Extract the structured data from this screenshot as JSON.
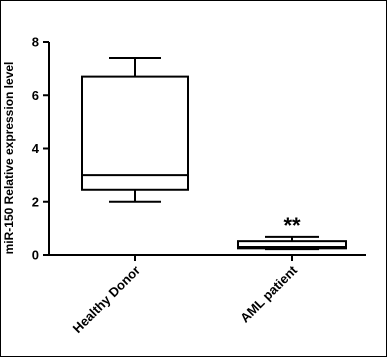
{
  "chart_data": {
    "type": "box",
    "ylabel": "miR-150 Relative expression level",
    "ylim": [
      0,
      8
    ],
    "yticks": [
      0,
      2,
      4,
      6,
      8
    ],
    "categories": [
      "Healthy Donor",
      "AML patient"
    ],
    "boxes": [
      {
        "name": "Healthy Donor",
        "min": 2.0,
        "q1": 2.45,
        "median": 3.0,
        "q3": 6.7,
        "max": 7.4,
        "annotation": ""
      },
      {
        "name": "AML patient",
        "min": 0.22,
        "q1": 0.25,
        "median": 0.3,
        "q3": 0.52,
        "max": 0.68,
        "annotation": "**"
      }
    ],
    "grid": false,
    "legend": "none"
  }
}
